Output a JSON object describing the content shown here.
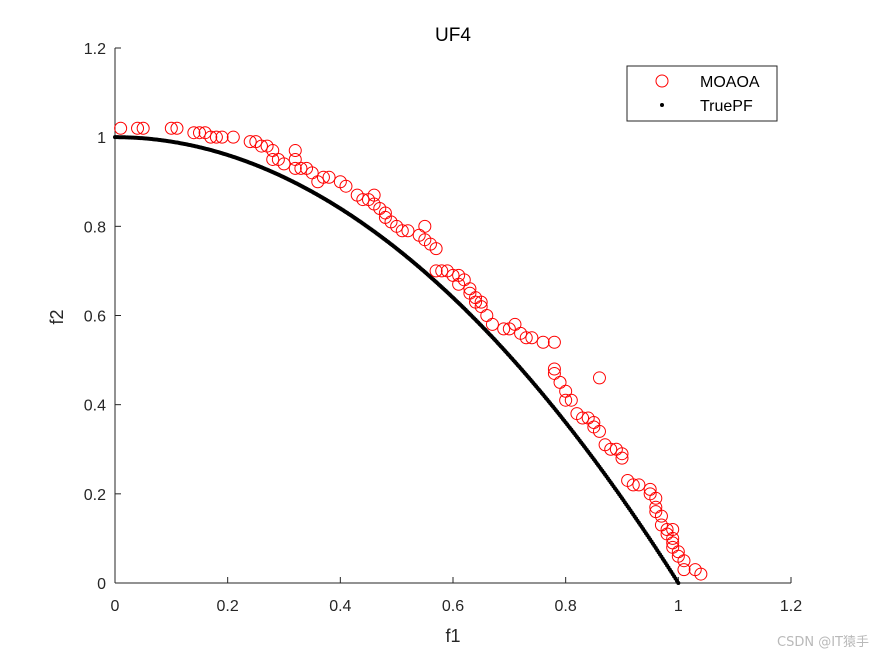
{
  "chart_data": {
    "type": "scatter",
    "title": "UF4",
    "xlabel": "f1",
    "ylabel": "f2",
    "xlim": [
      0,
      1.2
    ],
    "ylim": [
      0,
      1.2
    ],
    "xticks": [
      0,
      0.2,
      0.4,
      0.6,
      0.8,
      1,
      1.2
    ],
    "yticks": [
      0,
      0.2,
      0.4,
      0.6,
      0.8,
      1,
      1.2
    ],
    "xtick_labels": [
      "0",
      "0.2",
      "0.4",
      "0.6",
      "0.8",
      "1",
      "1.2"
    ],
    "ytick_labels": [
      "0",
      "0.2",
      "0.4",
      "0.6",
      "0.8",
      "1",
      "1.2"
    ],
    "grid": false,
    "legend_position": "top-right",
    "series": [
      {
        "name": "MOAOA",
        "marker": "open-circle",
        "color": "#ff0000",
        "points": [
          [
            0.01,
            1.02
          ],
          [
            0.04,
            1.02
          ],
          [
            0.05,
            1.02
          ],
          [
            0.1,
            1.02
          ],
          [
            0.11,
            1.02
          ],
          [
            0.14,
            1.01
          ],
          [
            0.15,
            1.01
          ],
          [
            0.16,
            1.01
          ],
          [
            0.17,
            1.0
          ],
          [
            0.18,
            1.0
          ],
          [
            0.19,
            1.0
          ],
          [
            0.21,
            1.0
          ],
          [
            0.24,
            0.99
          ],
          [
            0.25,
            0.99
          ],
          [
            0.26,
            0.98
          ],
          [
            0.27,
            0.98
          ],
          [
            0.28,
            0.97
          ],
          [
            0.28,
            0.95
          ],
          [
            0.29,
            0.95
          ],
          [
            0.3,
            0.94
          ],
          [
            0.32,
            0.97
          ],
          [
            0.32,
            0.95
          ],
          [
            0.32,
            0.93
          ],
          [
            0.33,
            0.93
          ],
          [
            0.34,
            0.93
          ],
          [
            0.35,
            0.92
          ],
          [
            0.36,
            0.9
          ],
          [
            0.37,
            0.91
          ],
          [
            0.38,
            0.91
          ],
          [
            0.4,
            0.9
          ],
          [
            0.41,
            0.89
          ],
          [
            0.43,
            0.87
          ],
          [
            0.44,
            0.86
          ],
          [
            0.45,
            0.86
          ],
          [
            0.46,
            0.87
          ],
          [
            0.46,
            0.85
          ],
          [
            0.47,
            0.84
          ],
          [
            0.48,
            0.83
          ],
          [
            0.48,
            0.82
          ],
          [
            0.49,
            0.81
          ],
          [
            0.5,
            0.8
          ],
          [
            0.51,
            0.79
          ],
          [
            0.52,
            0.79
          ],
          [
            0.54,
            0.78
          ],
          [
            0.55,
            0.8
          ],
          [
            0.55,
            0.77
          ],
          [
            0.56,
            0.76
          ],
          [
            0.57,
            0.75
          ],
          [
            0.57,
            0.7
          ],
          [
            0.58,
            0.7
          ],
          [
            0.59,
            0.7
          ],
          [
            0.6,
            0.69
          ],
          [
            0.61,
            0.69
          ],
          [
            0.61,
            0.67
          ],
          [
            0.62,
            0.68
          ],
          [
            0.63,
            0.66
          ],
          [
            0.63,
            0.65
          ],
          [
            0.64,
            0.64
          ],
          [
            0.64,
            0.63
          ],
          [
            0.65,
            0.63
          ],
          [
            0.65,
            0.62
          ],
          [
            0.66,
            0.6
          ],
          [
            0.67,
            0.58
          ],
          [
            0.69,
            0.57
          ],
          [
            0.7,
            0.57
          ],
          [
            0.71,
            0.58
          ],
          [
            0.72,
            0.56
          ],
          [
            0.73,
            0.55
          ],
          [
            0.74,
            0.55
          ],
          [
            0.76,
            0.54
          ],
          [
            0.78,
            0.54
          ],
          [
            0.78,
            0.48
          ],
          [
            0.78,
            0.47
          ],
          [
            0.79,
            0.45
          ],
          [
            0.8,
            0.43
          ],
          [
            0.8,
            0.41
          ],
          [
            0.81,
            0.41
          ],
          [
            0.82,
            0.38
          ],
          [
            0.83,
            0.37
          ],
          [
            0.84,
            0.37
          ],
          [
            0.85,
            0.36
          ],
          [
            0.85,
            0.35
          ],
          [
            0.86,
            0.46
          ],
          [
            0.86,
            0.34
          ],
          [
            0.87,
            0.31
          ],
          [
            0.88,
            0.3
          ],
          [
            0.89,
            0.3
          ],
          [
            0.9,
            0.29
          ],
          [
            0.9,
            0.28
          ],
          [
            0.91,
            0.23
          ],
          [
            0.92,
            0.22
          ],
          [
            0.93,
            0.22
          ],
          [
            0.95,
            0.21
          ],
          [
            0.95,
            0.2
          ],
          [
            0.96,
            0.19
          ],
          [
            0.96,
            0.17
          ],
          [
            0.96,
            0.16
          ],
          [
            0.97,
            0.15
          ],
          [
            0.97,
            0.13
          ],
          [
            0.98,
            0.12
          ],
          [
            0.98,
            0.11
          ],
          [
            0.99,
            0.12
          ],
          [
            0.99,
            0.1
          ],
          [
            0.99,
            0.09
          ],
          [
            0.99,
            0.08
          ],
          [
            1.0,
            0.07
          ],
          [
            1.0,
            0.06
          ],
          [
            1.01,
            0.05
          ],
          [
            1.01,
            0.03
          ],
          [
            1.03,
            0.03
          ],
          [
            1.04,
            0.02
          ]
        ]
      },
      {
        "name": "TruePF",
        "marker": "point",
        "color": "#000000",
        "relation": "f2 = 1 - f1^2",
        "x_range": [
          0,
          1
        ]
      }
    ]
  },
  "watermark": "CSDN @IT猿手"
}
